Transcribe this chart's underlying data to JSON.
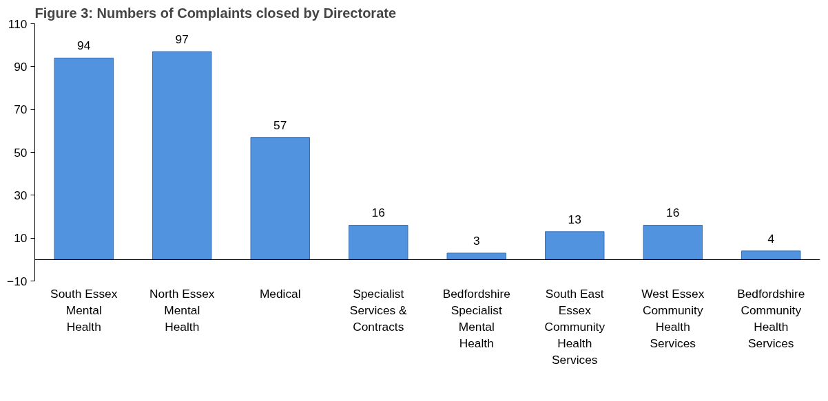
{
  "chart_data": {
    "type": "bar",
    "title": "Figure 3: Numbers of Complaints closed by Directorate",
    "categories": [
      "South Essex\nMental\nHealth",
      "North Essex\nMental\nHealth",
      "Medical",
      "Specialist\nServices &\nContracts",
      "Bedfordshire\nSpecialist\nMental\nHealth",
      "South East\nEssex\nCommunity\nHealth\nServices",
      "West Essex\nCommunity\nHealth\nServices",
      "Bedfordshire\nCommunity\nHealth\nServices"
    ],
    "values": [
      94,
      97,
      57,
      16,
      3,
      13,
      16,
      4
    ],
    "color": "#5293e0",
    "ylim": [
      -10,
      110
    ],
    "yticks": [
      -10,
      10,
      30,
      50,
      70,
      90,
      110
    ],
    "data_labels": true,
    "grid": false,
    "legend": false
  }
}
